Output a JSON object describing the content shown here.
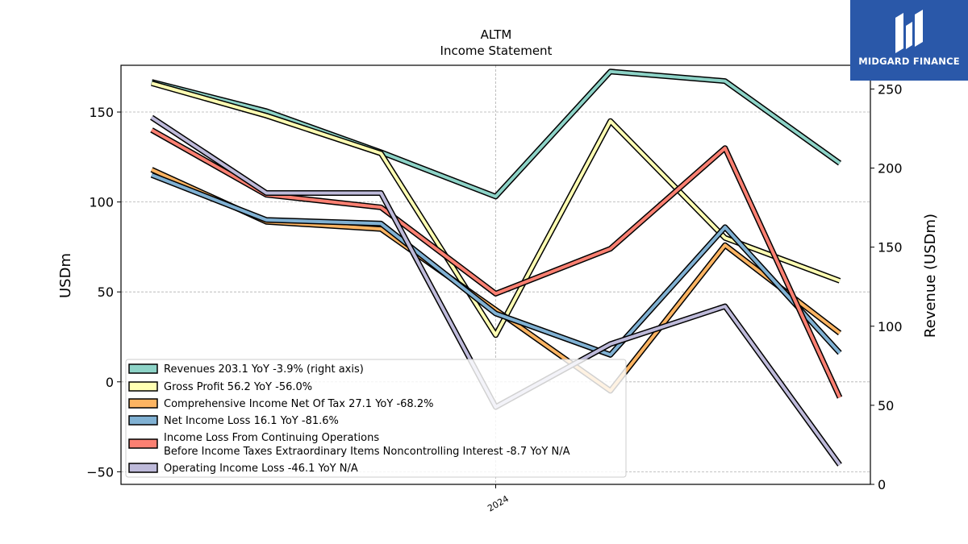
{
  "brand": {
    "name": "MIDGARD FINANCE"
  },
  "chart_data": {
    "type": "line",
    "title": "ALTM",
    "subtitle": "Income Statement",
    "ylabel": "USDm",
    "ylabel_right": "Revenue (USDm)",
    "ylim": [
      -57,
      176
    ],
    "ylim_right": [
      0,
      265
    ],
    "yticks": [
      -50,
      0,
      50,
      100,
      150
    ],
    "yticks_right": [
      0,
      50,
      100,
      150,
      200,
      250
    ],
    "x_tick_label": "2024",
    "x_tick_index": 3,
    "grid": true,
    "legend_position": "lower-left",
    "x": [
      0,
      1,
      2,
      3,
      4,
      5,
      6
    ],
    "series": [
      {
        "name": "Revenues",
        "legend": "Revenues  203.1 YoY -3.9% (right axis)",
        "axis": "right",
        "color": "#8dd3c7",
        "values": [
          254.5,
          236,
          210,
          182,
          261,
          255,
          203.1
        ]
      },
      {
        "name": "Gross Profit",
        "legend": "Gross Profit  56.2 YoY -56.0%",
        "axis": "left",
        "color": "#ffffb3",
        "values": [
          166,
          148,
          127,
          26,
          145,
          80,
          56.2
        ]
      },
      {
        "name": "Comprehensive Income Net Of Tax",
        "legend": "Comprehensive Income Net Of Tax  27.1 YoY -68.2%",
        "axis": "left",
        "color": "#fdb462",
        "values": [
          118,
          89,
          85,
          40,
          -5,
          76,
          27.1
        ]
      },
      {
        "name": "Net Income Loss",
        "legend": "Net Income Loss  16.1 YoY -81.6%",
        "axis": "left",
        "color": "#80b1d3",
        "values": [
          115,
          90,
          88,
          38,
          15,
          86,
          16.1
        ]
      },
      {
        "name": "Income Loss From Continuing Operations Before Income Taxes Extraordinary Items Noncontrolling Interest",
        "legend": "Income Loss From Continuing Operations",
        "legend2": "Before Income Taxes Extraordinary Items Noncontrolling Interest  -8.7 YoY N/A",
        "axis": "left",
        "color": "#fb8072",
        "values": [
          140,
          104,
          97,
          49,
          74,
          130,
          -8.7
        ]
      },
      {
        "name": "Operating Income Loss",
        "legend": "Operating Income Loss  -46.1 YoY N/A",
        "axis": "left",
        "color": "#bebada",
        "values": [
          147,
          105,
          105,
          -14,
          21,
          42,
          -46.1
        ]
      }
    ]
  }
}
